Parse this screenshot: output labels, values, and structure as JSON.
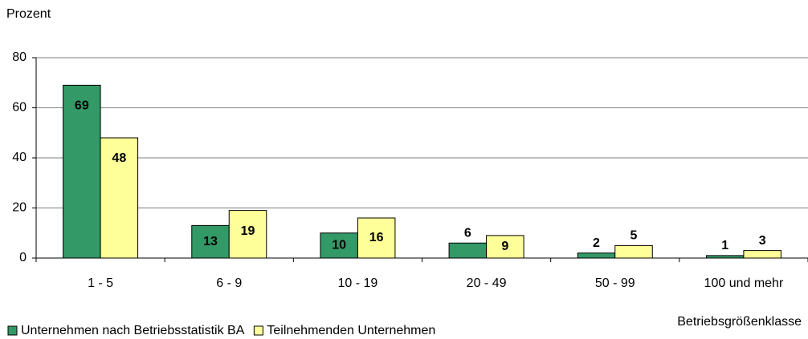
{
  "chart_data": {
    "type": "bar",
    "y_label": "Prozent",
    "x_label": "Betriebsgrößenklasse",
    "categories": [
      "1 - 5",
      "6 - 9",
      "10 - 19",
      "20 - 49",
      "50 - 99",
      "100 und mehr"
    ],
    "series": [
      {
        "name": "Unternehmen nach Betriebsstatistik BA",
        "color": "#339966",
        "values": [
          69,
          13,
          10,
          6,
          2,
          1
        ]
      },
      {
        "name": "Teilnehmenden Unternehmen",
        "color": "#ffff99",
        "values": [
          48,
          19,
          16,
          9,
          5,
          3
        ]
      }
    ],
    "ylim": [
      0,
      80
    ],
    "yticks": [
      0,
      20,
      40,
      60,
      80
    ],
    "grid": true,
    "legend": "bottom"
  }
}
